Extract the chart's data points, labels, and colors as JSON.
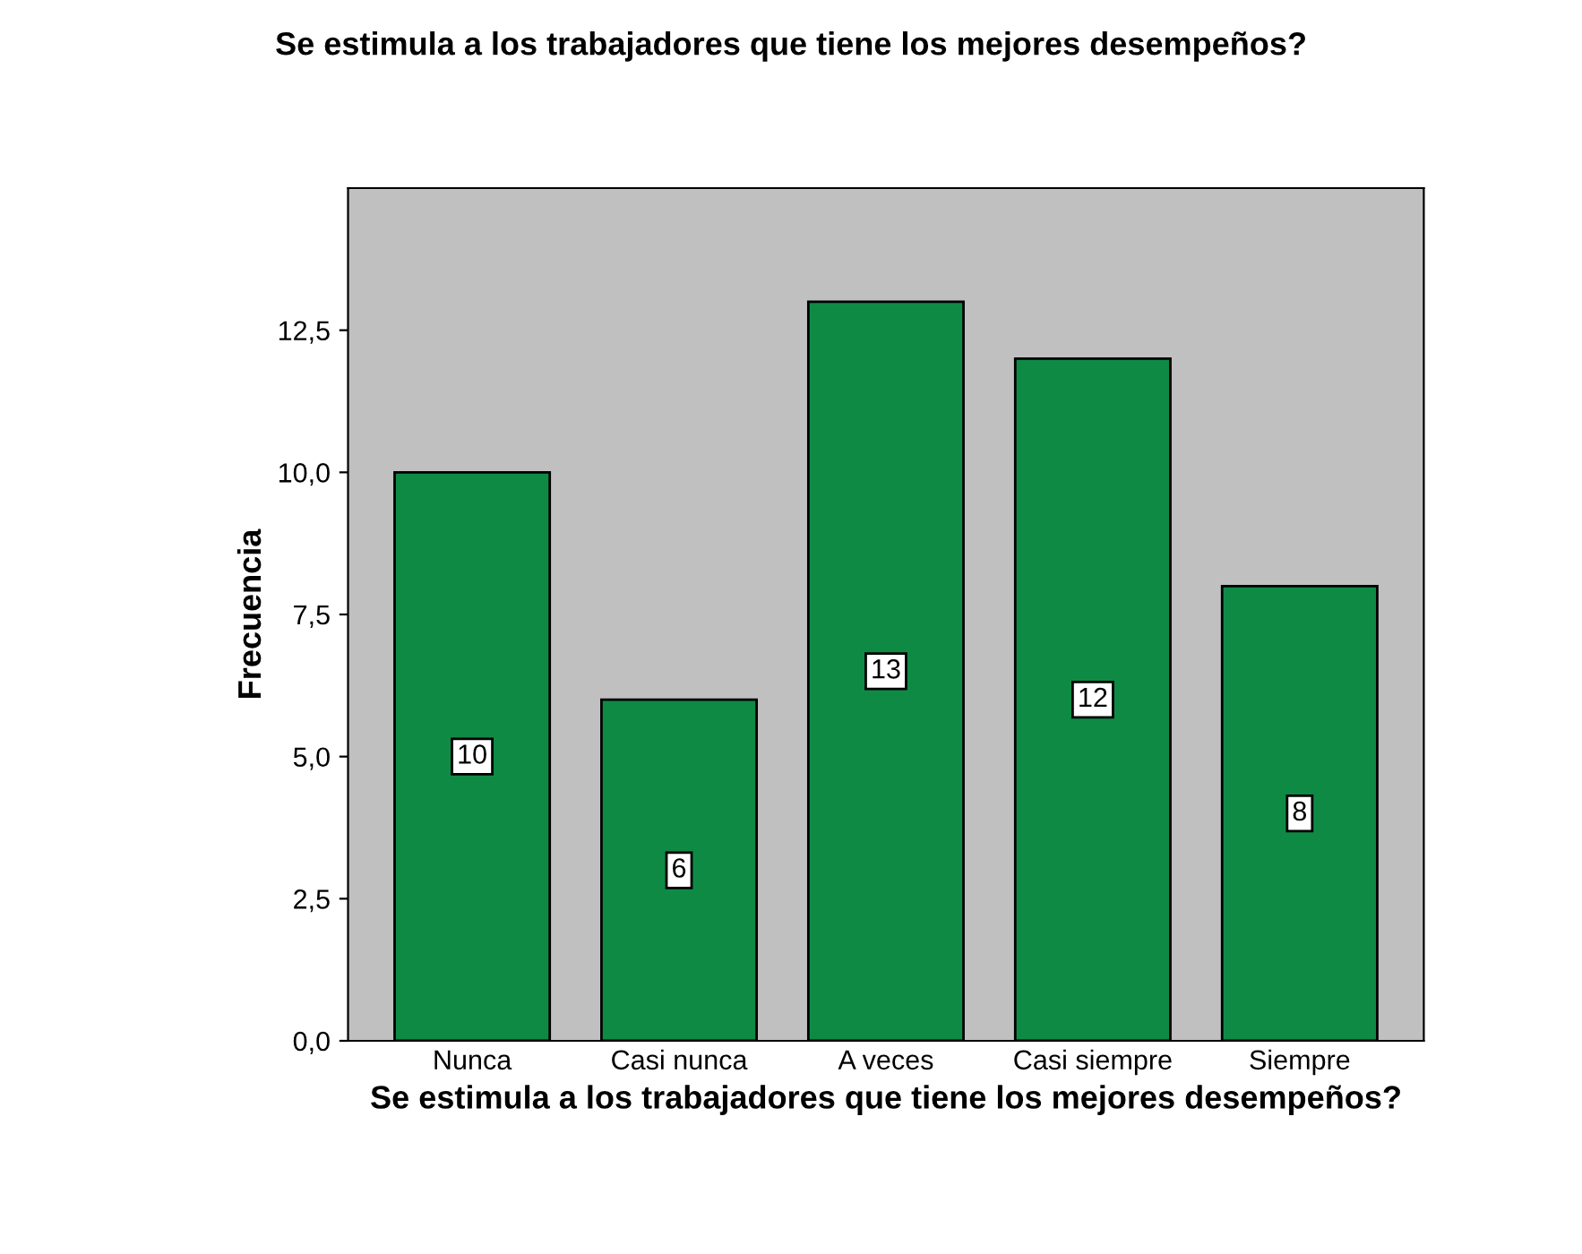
{
  "chart_data": {
    "type": "bar",
    "title": "Se estimula a los trabajadores que tiene los mejores desempeños?",
    "xlabel": "Se estimula a los trabajadores que tiene los mejores desempeños?",
    "ylabel": "Frecuencia",
    "categories": [
      "Nunca",
      "Casi nunca",
      "A veces",
      "Casi siempre",
      "Siempre"
    ],
    "values": [
      10,
      6,
      13,
      12,
      8
    ],
    "color": "#0f8a45",
    "data_labels": true,
    "ylim": [
      0,
      15
    ],
    "yticks": [
      {
        "value": 0,
        "label": "0,0"
      },
      {
        "value": 2.5,
        "label": "2,5"
      },
      {
        "value": 5,
        "label": "5,0"
      },
      {
        "value": 7.5,
        "label": "7,5"
      },
      {
        "value": 10,
        "label": "10,0"
      },
      {
        "value": 12.5,
        "label": "12,5"
      }
    ],
    "grid": false
  }
}
